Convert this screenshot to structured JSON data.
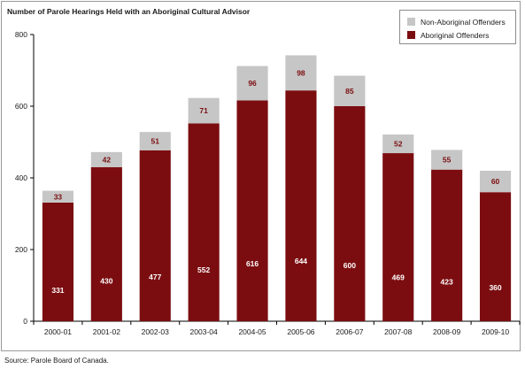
{
  "colors": {
    "aboriginal": "#7b0d10",
    "non_aboriginal": "#c6c6c6",
    "axis": "#000000"
  },
  "source": "Source:  Parole Board of Canada.",
  "chart_data": {
    "type": "bar",
    "stacked": true,
    "title": "Number of Parole Hearings Held with an Aboriginal Cultural Advisor",
    "xlabel": "",
    "ylabel": "",
    "ylim": [
      0,
      800
    ],
    "yticks": [
      0,
      200,
      400,
      600,
      800
    ],
    "grid": false,
    "legend_position": "top-right",
    "categories": [
      "2000-01",
      "2001-02",
      "2002-03",
      "2003-04",
      "2004-05",
      "2005-06",
      "2006-07",
      "2007-08",
      "2008-09",
      "2009-10"
    ],
    "series": [
      {
        "name": "Aboriginal Offenders",
        "values": [
          331,
          430,
          477,
          552,
          616,
          644,
          600,
          469,
          423,
          360
        ]
      },
      {
        "name": "Non-Aboriginal Offenders",
        "values": [
          33,
          42,
          51,
          71,
          96,
          98,
          85,
          52,
          55,
          60
        ]
      }
    ]
  }
}
